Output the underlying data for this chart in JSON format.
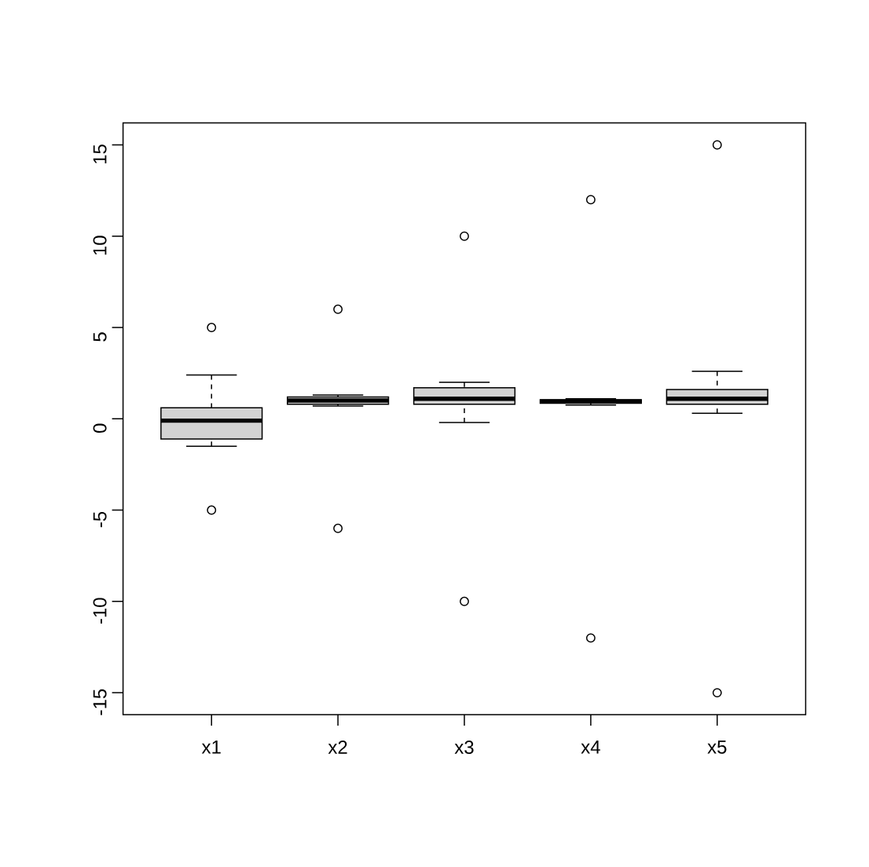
{
  "chart_data": {
    "type": "box",
    "categories": [
      "x1",
      "x2",
      "x3",
      "x4",
      "x5"
    ],
    "boxes": [
      {
        "low": -1.5,
        "q1": -1.1,
        "median": -0.1,
        "q3": 0.6,
        "high": 2.4,
        "outliers": [
          5,
          -5
        ]
      },
      {
        "low": 0.7,
        "q1": 0.8,
        "median": 1.0,
        "q3": 1.2,
        "high": 1.3,
        "outliers": [
          6,
          -6
        ]
      },
      {
        "low": -0.2,
        "q1": 0.8,
        "median": 1.1,
        "q3": 1.7,
        "high": 2.0,
        "outliers": [
          10,
          -10
        ]
      },
      {
        "low": 0.75,
        "q1": 0.85,
        "median": 0.95,
        "q3": 1.05,
        "high": 1.1,
        "outliers": [
          12,
          -12
        ]
      },
      {
        "low": 0.3,
        "q1": 0.8,
        "median": 1.1,
        "q3": 1.6,
        "high": 2.6,
        "outliers": [
          15,
          -15
        ]
      }
    ],
    "color": "#d3d3d3",
    "marker": "circle",
    "ylim": [
      -16.2,
      16.2
    ],
    "yticks": [
      -15,
      -10,
      -5,
      0,
      5,
      10,
      15
    ]
  }
}
